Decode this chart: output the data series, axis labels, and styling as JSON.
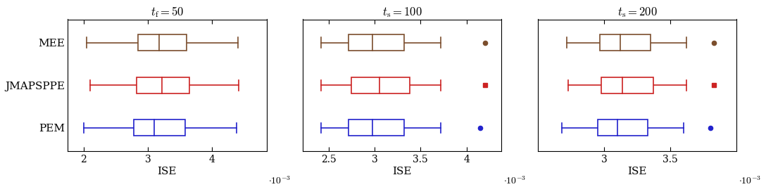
{
  "panels": [
    {
      "title": "$t_{\\mathrm{f}} = 50$",
      "xlim": [
        1.75,
        4.85
      ],
      "xticks": [
        2,
        3,
        4
      ],
      "xticklabels": [
        "2",
        "3",
        "4"
      ],
      "methods": [
        {
          "name": "MEE",
          "color": "#7B4E2D",
          "whislo": 2.05,
          "q1": 2.85,
          "med": 3.18,
          "q3": 3.6,
          "whishi": 4.4,
          "fliers": []
        },
        {
          "name": "JMAPSPPE",
          "color": "#CC2222",
          "whislo": 2.1,
          "q1": 2.82,
          "med": 3.22,
          "q3": 3.65,
          "whishi": 4.42,
          "fliers": []
        },
        {
          "name": "PEM",
          "color": "#2222CC",
          "whislo": 2.0,
          "q1": 2.78,
          "med": 3.1,
          "q3": 3.58,
          "whishi": 4.38,
          "fliers": []
        }
      ]
    },
    {
      "title": "$t_{\\mathrm{s}} = 100$",
      "xlim": [
        2.22,
        4.38
      ],
      "xticks": [
        2.5,
        3.0,
        3.5,
        4.0
      ],
      "xticklabels": [
        "2.5",
        "3",
        "3.5",
        "4"
      ],
      "methods": [
        {
          "name": "MEE",
          "color": "#7B4E2D",
          "whislo": 2.42,
          "q1": 2.72,
          "med": 2.98,
          "q3": 3.32,
          "whishi": 3.72,
          "fliers": [
            4.2
          ]
        },
        {
          "name": "JMAPSPPE",
          "color": "#CC2222",
          "whislo": 2.42,
          "q1": 2.75,
          "med": 3.05,
          "q3": 3.38,
          "whishi": 3.72,
          "fliers": [
            4.2
          ]
        },
        {
          "name": "PEM",
          "color": "#2222CC",
          "whislo": 2.42,
          "q1": 2.72,
          "med": 2.98,
          "q3": 3.32,
          "whishi": 3.72,
          "fliers": [
            4.15
          ]
        }
      ]
    },
    {
      "title": "$t_{\\mathrm{s}} = 200$",
      "xlim": [
        2.5,
        4.0
      ],
      "xticks": [
        3.0,
        3.5
      ],
      "xticklabels": [
        "3",
        "3.5"
      ],
      "methods": [
        {
          "name": "MEE",
          "color": "#7B4E2D",
          "whislo": 2.72,
          "q1": 2.97,
          "med": 3.12,
          "q3": 3.35,
          "whishi": 3.62,
          "fliers": [
            3.83
          ]
        },
        {
          "name": "JMAPSPPE",
          "color": "#CC2222",
          "whislo": 2.73,
          "q1": 2.98,
          "med": 3.14,
          "q3": 3.37,
          "whishi": 3.62,
          "fliers": [
            3.83
          ]
        },
        {
          "name": "PEM",
          "color": "#2222CC",
          "whislo": 2.68,
          "q1": 2.95,
          "med": 3.1,
          "q3": 3.33,
          "whishi": 3.6,
          "fliers": [
            3.8
          ]
        }
      ]
    }
  ],
  "xlabel": "ISE",
  "scale_label": "$\\cdot 10^{-3}$",
  "box_width": 0.38,
  "cap_ratio": 0.32,
  "linewidth": 1.2,
  "background": "#ffffff",
  "flier_shapes": [
    "o",
    "s",
    "o"
  ],
  "flier_sizes": [
    4.5,
    4,
    4.5
  ],
  "title_fontsize": 12,
  "tick_fontsize": 10,
  "label_fontsize": 11,
  "scale_fontsize": 10,
  "ylim": [
    0.45,
    3.55
  ],
  "positions": [
    3,
    2,
    1
  ]
}
